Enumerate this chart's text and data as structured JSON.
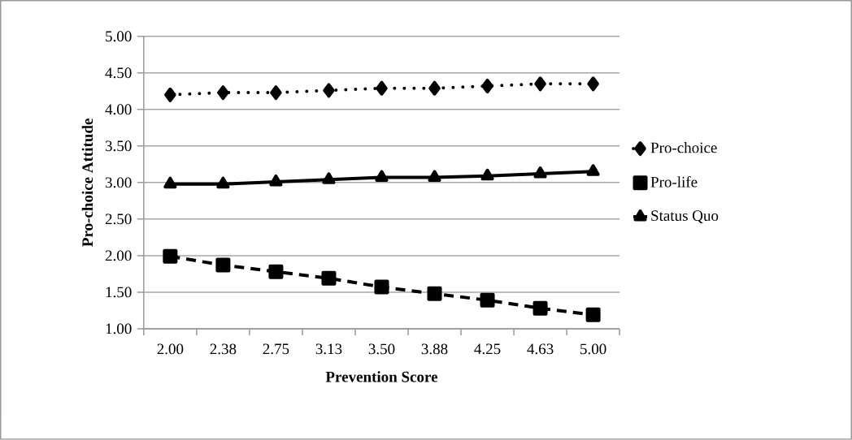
{
  "chart_data": {
    "type": "line",
    "xlabel": "Prevention Score",
    "ylabel": "Pro-choice Attitude",
    "categories": [
      "2.00",
      "2.38",
      "2.75",
      "3.13",
      "3.50",
      "3.88",
      "4.25",
      "4.63",
      "5.00"
    ],
    "series": [
      {
        "name": "Pro-choice",
        "color": "#000000",
        "marker": "diamond",
        "line_style": "dotted",
        "values": [
          4.2,
          4.23,
          4.23,
          4.26,
          4.29,
          4.29,
          4.32,
          4.35,
          4.35
        ]
      },
      {
        "name": "Pro-life",
        "color": "#000000",
        "marker": "square",
        "line_style": "dashed",
        "values": [
          1.99,
          1.87,
          1.78,
          1.69,
          1.57,
          1.48,
          1.39,
          1.28,
          1.19
        ]
      },
      {
        "name": "Status Quo",
        "color": "#000000",
        "marker": "triangle",
        "line_style": "solid",
        "values": [
          2.98,
          2.98,
          3.01,
          3.04,
          3.07,
          3.07,
          3.09,
          3.12,
          3.15
        ]
      }
    ],
    "ylim": [
      1.0,
      5.0
    ],
    "yticks": [
      {
        "value": 1.0,
        "label": "1.00"
      },
      {
        "value": 1.5,
        "label": "1.50"
      },
      {
        "value": 2.0,
        "label": "2.00"
      },
      {
        "value": 2.5,
        "label": "2.50"
      },
      {
        "value": 3.0,
        "label": "3.00"
      },
      {
        "value": 3.5,
        "label": "3.50"
      },
      {
        "value": 4.0,
        "label": "4.00"
      },
      {
        "value": 4.5,
        "label": "4.50"
      },
      {
        "value": 5.0,
        "label": "5.00"
      }
    ],
    "grid": "y",
    "legend": "right"
  }
}
